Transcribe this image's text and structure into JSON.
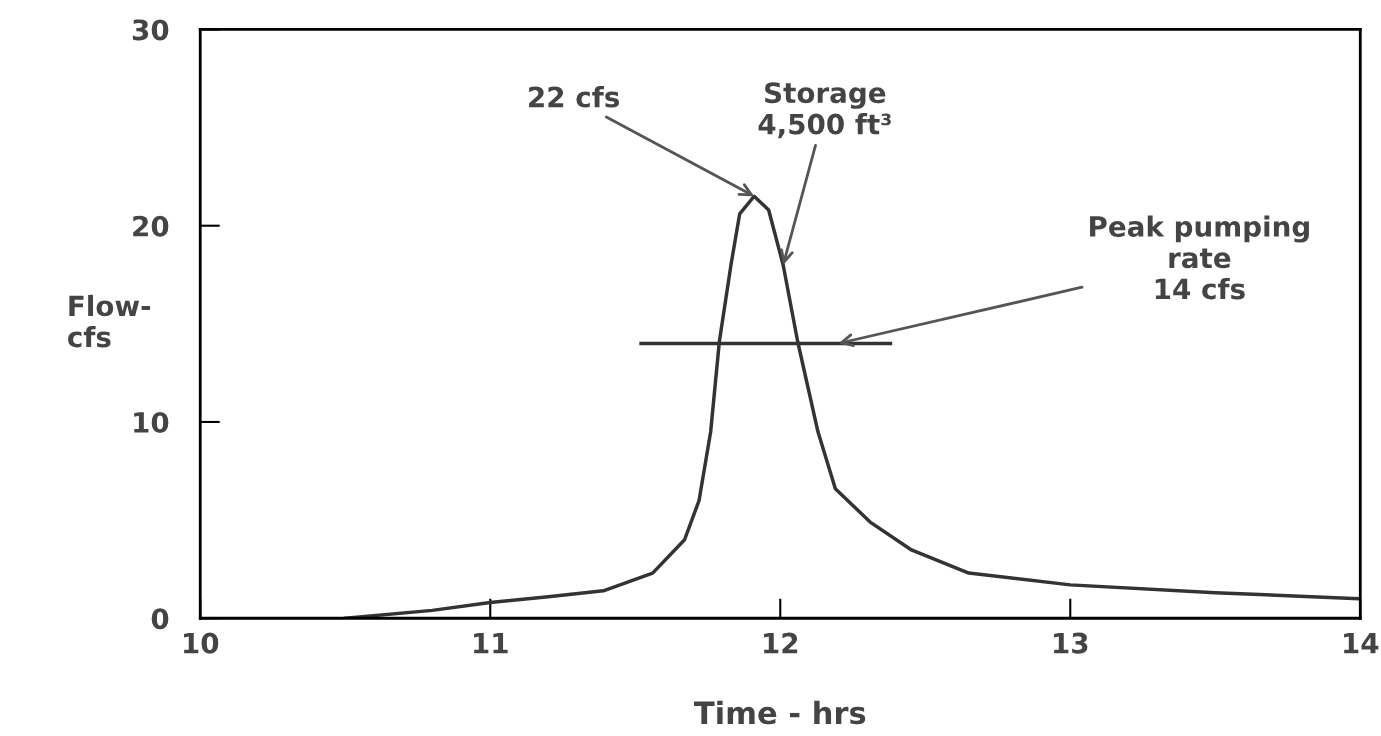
{
  "chart_data": {
    "type": "line",
    "xlabel": "Time - hrs",
    "ylabel": "Flow-\ncfs",
    "xlim": [
      10,
      14
    ],
    "ylim": [
      0,
      30
    ],
    "xticks": [
      10,
      11,
      12,
      13,
      14
    ],
    "yticks": [
      0,
      10,
      20,
      30
    ],
    "grid": false,
    "marker": "none",
    "line_style": "solid",
    "series": [
      {
        "color": "#333333",
        "x": [
          10.5,
          10.8,
          11.0,
          11.2,
          11.39,
          11.56,
          11.67,
          11.72,
          11.76,
          11.79,
          11.83,
          11.86,
          11.91,
          11.96,
          12.01,
          12.06,
          12.13,
          12.19,
          12.31,
          12.45,
          12.65,
          13.0,
          13.5,
          13.99
        ],
        "values": [
          0,
          0.4,
          0.8,
          1.1,
          1.4,
          2.3,
          4.0,
          6.0,
          9.5,
          14.1,
          18.0,
          20.6,
          21.5,
          20.8,
          18.0,
          14.1,
          9.5,
          6.6,
          4.9,
          3.5,
          2.3,
          1.7,
          1.3,
          1.0
        ]
      },
      {
        "color": "#333333",
        "x": [
          11.52,
          12.38
        ],
        "values": [
          14,
          14
        ]
      }
    ],
    "annotations": [
      {
        "text": "22 cfs",
        "x": 11.91,
        "y": 21.5
      },
      {
        "text": "Storage\n4,500 ft³",
        "x": 12.01,
        "y": 18.0
      },
      {
        "text": "Peak pumping\nrate\n14 cfs",
        "x": 12.2,
        "y": 14
      }
    ]
  }
}
